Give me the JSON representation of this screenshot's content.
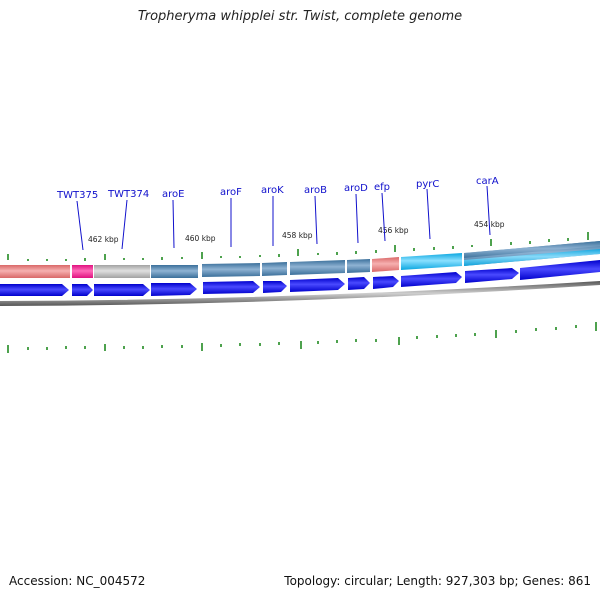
{
  "title": "Tropheryma whipplei str. Twist, complete genome",
  "accession": "Accession: NC_004572",
  "summary": "Topology: circular; Length: 927,303 bp; Genes: 861",
  "kbp_labels": [
    "462 kbp",
    "460 kbp",
    "458 kbp",
    "456 kbp",
    "454 kbp"
  ],
  "genes": [
    {
      "name": "TWT375",
      "color": "#ff1493"
    },
    {
      "name": "TWT374",
      "color": "#b8b8b8"
    },
    {
      "name": "aroE",
      "color": "#4682b4"
    },
    {
      "name": "aroF",
      "color": "#4682b4"
    },
    {
      "name": "aroK",
      "color": "#4682b4"
    },
    {
      "name": "aroB",
      "color": "#4682b4"
    },
    {
      "name": "aroD",
      "color": "#4682b4"
    },
    {
      "name": "efp",
      "color": "#f08080"
    },
    {
      "name": "pyrC",
      "color": "#00bfff"
    },
    {
      "name": "carA",
      "color": "#4682b4"
    }
  ],
  "colors": {
    "cds": "#0000ee",
    "tick": "#228b22",
    "backbone": "#777777",
    "label": "#1010cc"
  }
}
